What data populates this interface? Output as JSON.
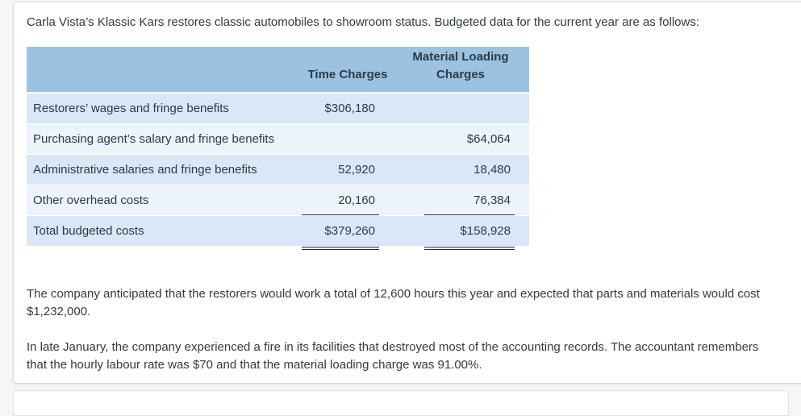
{
  "question": {
    "intro": "Carla Vista’s Klassic Kars restores classic automobiles to showroom status. Budgeted data for the current year are as follows:",
    "hours_note": "The company anticipated that the restorers would work a total of 12,600 hours this year and expected that parts and materials would cost $1,232,000.",
    "fire_note": "In late January, the company experienced a fire in its facilities that destroyed most of the accounting records. The accountant remembers that the hourly labour rate was $70 and that the material loading charge was 91.00%."
  },
  "table": {
    "headers": {
      "label": "",
      "time": "Time Charges",
      "material": "Material Loading Charges"
    },
    "rows": [
      {
        "label": "Restorers’ wages and fringe benefits",
        "time": "$306,180",
        "material": ""
      },
      {
        "label": "Purchasing agent’s salary and fringe benefits",
        "time": "",
        "material": "$64,064"
      },
      {
        "label": "Administrative salaries and fringe benefits",
        "time": "52,920",
        "material": "18,480"
      },
      {
        "label": "Other overhead costs",
        "time": "20,160",
        "material": "76,384"
      },
      {
        "label": "Total budgeted costs",
        "time": "$379,260",
        "material": "$158,928"
      }
    ],
    "underlines": {
      "single_row": "Other overhead costs",
      "double_row": "Total budgeted costs"
    },
    "colors": {
      "header_bg": "#9cc2e2",
      "row_odd_bg": "#d9e7f7",
      "row_even_bg": "#ecf3fb",
      "text_color": "#2d3b45"
    }
  }
}
